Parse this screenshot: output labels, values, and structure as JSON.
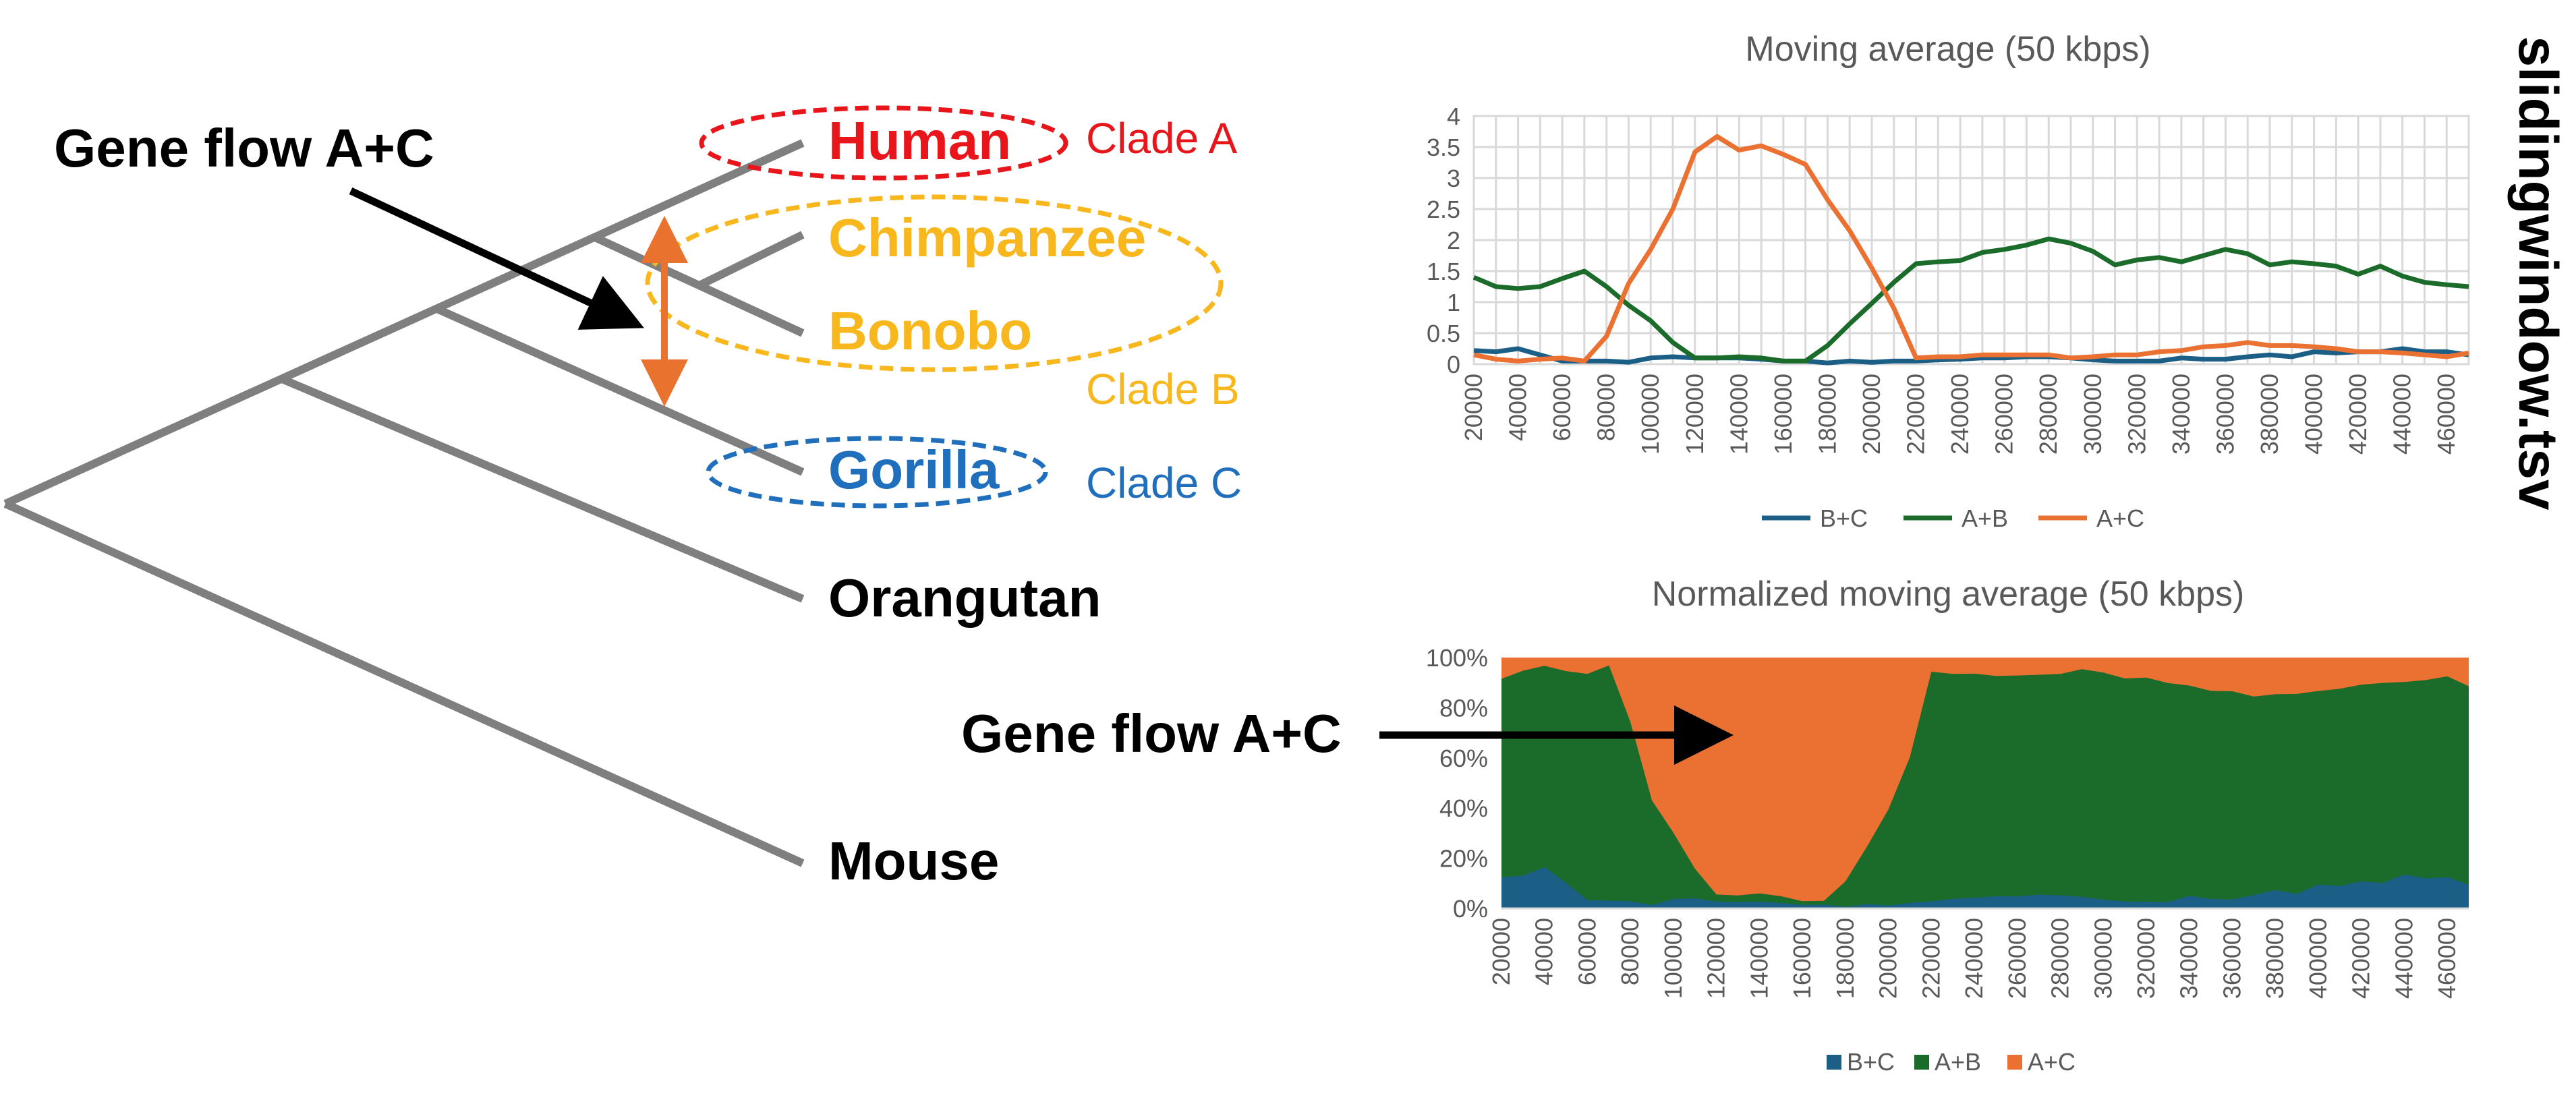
{
  "colors": {
    "branch": "#7f7f7f",
    "clade_a": "#e8151b",
    "clade_b": "#f7b71d",
    "clade_c": "#1f6fbd",
    "arrow_orange": "#e9722f",
    "arrow_black": "#000000",
    "series_bc": "#1b5e86",
    "series_ab": "#1b6b2a",
    "series_ac": "#ea7132",
    "grid": "#d9d9d9",
    "axis_text": "#595959"
  },
  "tree": {
    "annotation": "Gene flow A+C",
    "taxa": {
      "human": "Human",
      "chimpanzee": "Chimpanzee",
      "bonobo": "Bonobo",
      "gorilla": "Gorilla",
      "orangutan": "Orangutan",
      "mouse": "Mouse"
    },
    "clades": {
      "a": "Clade A",
      "b": "Clade B",
      "c": "Clade C"
    }
  },
  "file_label": "slidingwindow.tsv",
  "chart_annotation": "Gene flow A+C",
  "chart_data": [
    {
      "type": "line",
      "title": "Moving average (50 kbps)",
      "x": [
        20000,
        30000,
        40000,
        50000,
        60000,
        70000,
        80000,
        90000,
        100000,
        110000,
        120000,
        130000,
        140000,
        150000,
        160000,
        170000,
        180000,
        190000,
        200000,
        210000,
        220000,
        230000,
        240000,
        250000,
        260000,
        270000,
        280000,
        290000,
        300000,
        310000,
        320000,
        330000,
        340000,
        350000,
        360000,
        370000,
        380000,
        390000,
        400000,
        410000,
        420000,
        430000,
        440000,
        450000,
        460000,
        470000
      ],
      "x_tick_labels": [
        "20000",
        "40000",
        "60000",
        "80000",
        "100000",
        "120000",
        "140000",
        "160000",
        "180000",
        "200000",
        "220000",
        "240000",
        "260000",
        "280000",
        "300000",
        "320000",
        "340000",
        "360000",
        "380000",
        "400000",
        "420000",
        "440000",
        "460000"
      ],
      "y_tick_labels": [
        "0",
        "0.5",
        "1",
        "1.5",
        "2",
        "2.5",
        "3",
        "3.5",
        "4"
      ],
      "ylim": [
        0,
        4
      ],
      "grid": true,
      "legend": "bottom",
      "series": [
        {
          "name": "B+C",
          "color": "#1b5e86",
          "values": [
            0.22,
            0.2,
            0.25,
            0.15,
            0.05,
            0.05,
            0.05,
            0.03,
            0.1,
            0.12,
            0.1,
            0.1,
            0.1,
            0.08,
            0.05,
            0.05,
            0.02,
            0.05,
            0.03,
            0.05,
            0.05,
            0.07,
            0.08,
            0.1,
            0.1,
            0.12,
            0.12,
            0.1,
            0.07,
            0.05,
            0.05,
            0.05,
            0.1,
            0.08,
            0.08,
            0.12,
            0.15,
            0.12,
            0.2,
            0.18,
            0.2,
            0.2,
            0.25,
            0.2,
            0.2,
            0.15
          ]
        },
        {
          "name": "A+B",
          "color": "#1b6b2a",
          "values": [
            1.4,
            1.25,
            1.22,
            1.25,
            1.38,
            1.5,
            1.25,
            0.95,
            0.7,
            0.35,
            0.1,
            0.1,
            0.12,
            0.1,
            0.05,
            0.05,
            0.3,
            0.65,
            0.98,
            1.32,
            1.62,
            1.65,
            1.67,
            1.8,
            1.85,
            1.92,
            2.02,
            1.95,
            1.82,
            1.6,
            1.68,
            1.72,
            1.65,
            1.75,
            1.85,
            1.78,
            1.6,
            1.65,
            1.62,
            1.58,
            1.45,
            1.58,
            1.42,
            1.32,
            1.28,
            1.25
          ]
        },
        {
          "name": "A+C",
          "color": "#ea7132",
          "values": [
            0.15,
            0.08,
            0.05,
            0.08,
            0.1,
            0.05,
            0.45,
            1.3,
            1.85,
            2.5,
            3.42,
            3.67,
            3.45,
            3.52,
            3.38,
            3.22,
            2.65,
            2.15,
            1.55,
            0.9,
            0.1,
            0.12,
            0.12,
            0.15,
            0.15,
            0.15,
            0.15,
            0.1,
            0.12,
            0.15,
            0.15,
            0.2,
            0.22,
            0.28,
            0.3,
            0.35,
            0.3,
            0.3,
            0.28,
            0.25,
            0.2,
            0.2,
            0.18,
            0.15,
            0.12,
            0.18
          ]
        }
      ]
    },
    {
      "type": "area",
      "stacked": "percent",
      "title": "Normalized moving average (50 kbps)",
      "x_tick_labels": [
        "20000",
        "40000",
        "60000",
        "80000",
        "100000",
        "120000",
        "140000",
        "160000",
        "180000",
        "200000",
        "220000",
        "240000",
        "260000",
        "280000",
        "300000",
        "320000",
        "340000",
        "360000",
        "380000",
        "400000",
        "420000",
        "440000",
        "460000"
      ],
      "y_tick_labels": [
        "0%",
        "20%",
        "40%",
        "60%",
        "80%",
        "100%"
      ],
      "ylim": [
        0,
        100
      ],
      "legend": "bottom",
      "series": [
        {
          "name": "B+C",
          "color": "#1b5e86"
        },
        {
          "name": "A+B",
          "color": "#1b6b2a"
        },
        {
          "name": "A+C",
          "color": "#ea7132"
        }
      ]
    }
  ]
}
